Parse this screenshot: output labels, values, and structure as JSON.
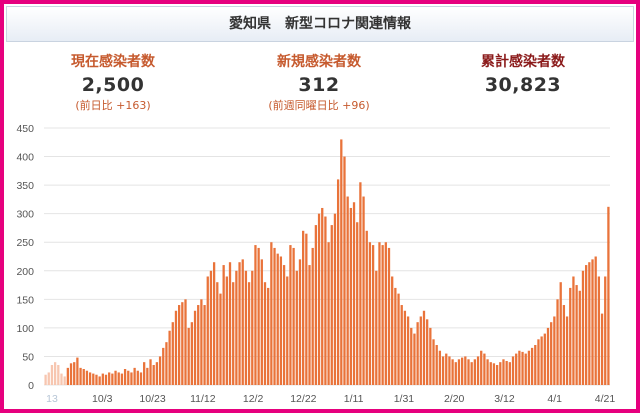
{
  "header": {
    "title": "愛知県　新型コロナ関連情報"
  },
  "stats": [
    {
      "label": "現在感染者数",
      "value": "2,500",
      "note": "(前日比 +163)"
    },
    {
      "label": "新規感染者数",
      "value": "312",
      "note": "(前週同曜日比 +96)"
    },
    {
      "label": "累計感染者数",
      "value": "30,823",
      "note": ""
    }
  ],
  "colors": {
    "border": "#e6007e",
    "bar": "#e9733a",
    "bar_light": "#f7c6b0",
    "accent_text": "#c65a2e",
    "dark_label": "#8b1a1a"
  },
  "chart_data": {
    "type": "bar",
    "x_tick_labels": [
      "13",
      "10/3",
      "10/23",
      "11/12",
      "12/2",
      "12/22",
      "1/11",
      "1/31",
      "2/20",
      "3/12",
      "4/1",
      "4/21"
    ],
    "y_ticks": [
      0,
      50,
      100,
      150,
      200,
      250,
      300,
      350,
      400,
      450
    ],
    "ylim": [
      0,
      450
    ],
    "grid": true,
    "values": [
      18,
      22,
      35,
      40,
      35,
      20,
      15,
      30,
      38,
      40,
      48,
      30,
      28,
      25,
      22,
      20,
      18,
      15,
      20,
      18,
      22,
      20,
      25,
      22,
      20,
      28,
      25,
      22,
      30,
      25,
      22,
      40,
      30,
      45,
      35,
      40,
      50,
      65,
      75,
      95,
      110,
      130,
      140,
      145,
      150,
      100,
      110,
      130,
      140,
      150,
      140,
      190,
      200,
      215,
      180,
      160,
      210,
      190,
      215,
      180,
      200,
      215,
      220,
      200,
      180,
      200,
      245,
      240,
      220,
      180,
      170,
      250,
      240,
      230,
      225,
      210,
      190,
      245,
      240,
      200,
      220,
      270,
      265,
      210,
      240,
      280,
      300,
      310,
      295,
      250,
      280,
      300,
      360,
      430,
      400,
      330,
      310,
      320,
      285,
      355,
      330,
      270,
      250,
      245,
      200,
      250,
      245,
      250,
      240,
      190,
      170,
      160,
      140,
      130,
      120,
      100,
      90,
      110,
      120,
      130,
      115,
      100,
      80,
      70,
      60,
      50,
      55,
      50,
      45,
      40,
      45,
      48,
      50,
      45,
      40,
      45,
      50,
      60,
      55,
      45,
      40,
      38,
      35,
      40,
      45,
      42,
      40,
      50,
      55,
      60,
      58,
      55,
      60,
      65,
      70,
      80,
      85,
      90,
      100,
      110,
      120,
      150,
      180,
      140,
      120,
      170,
      190,
      175,
      165,
      200,
      210,
      215,
      220,
      225,
      190,
      125,
      190,
      312
    ],
    "light_bar_count": 7
  }
}
